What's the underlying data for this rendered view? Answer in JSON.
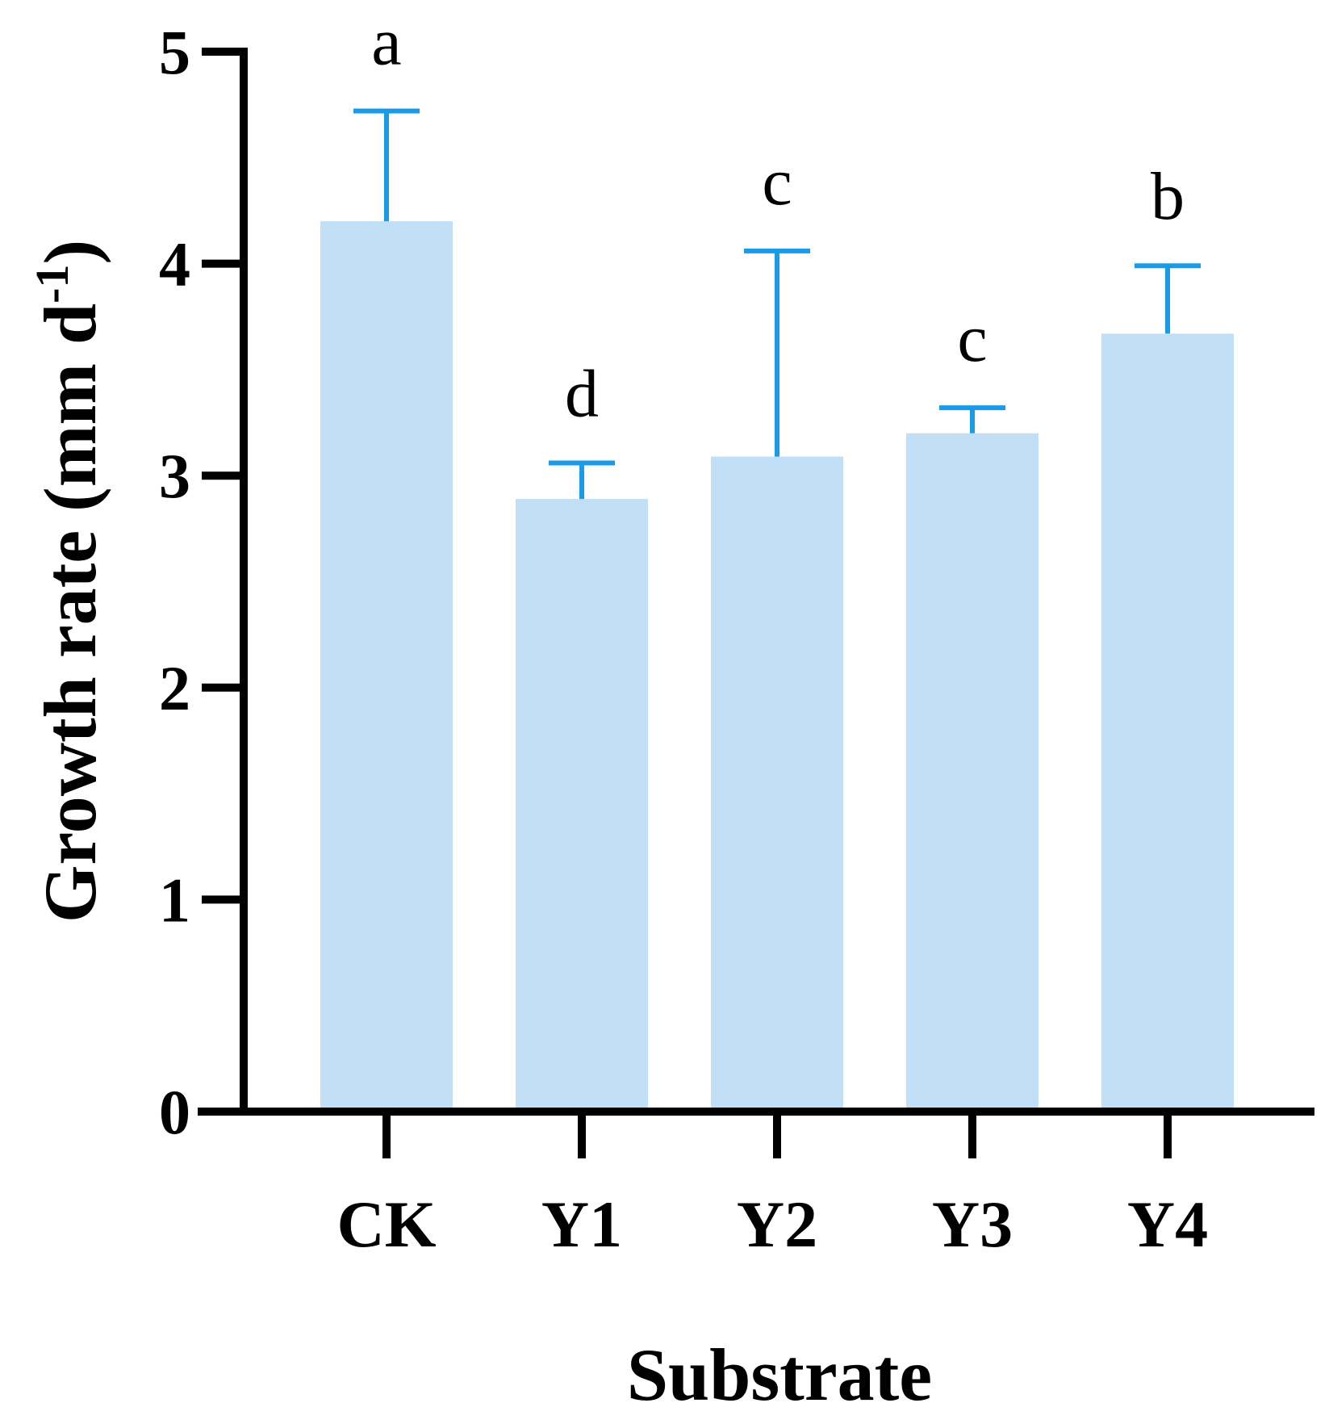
{
  "chart_data": {
    "type": "bar",
    "categories": [
      "CK",
      "Y1",
      "Y2",
      "Y3",
      "Y4"
    ],
    "values": [
      4.2,
      2.89,
      3.09,
      3.2,
      3.67
    ],
    "error_upper": [
      4.72,
      3.06,
      4.06,
      3.32,
      3.99
    ],
    "significance_letters": [
      "a",
      "d",
      "c",
      "c",
      "b"
    ],
    "xlabel": "Substrate",
    "ylabel": "Growth rate (mm d",
    "ylabel_superscript": "-1",
    "ylabel_close": ")",
    "ylim": [
      0,
      5
    ],
    "yticks": [
      "0",
      "1",
      "2",
      "3",
      "4",
      "5"
    ],
    "grid": false,
    "colors": {
      "bar": "#c2dff8",
      "error_bar": "#1a9be8",
      "axis": "#000000"
    }
  }
}
